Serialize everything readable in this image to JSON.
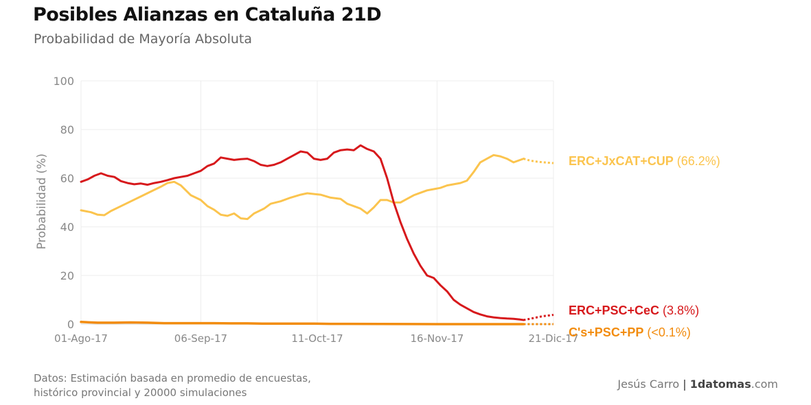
{
  "title": "Posibles Alianzas en Cataluña 21D",
  "subtitle": "Probabilidad de Mayoría Absoluta",
  "source": {
    "line1": "Datos: Estimación basada en promedio de encuestas,",
    "line2": "histórico provincial y 20000 simulaciones"
  },
  "credit": {
    "author": "Jesús Carro",
    "separator": "|",
    "brand": "1datomas",
    "tld": ".com"
  },
  "chart_data": {
    "type": "line",
    "title": "Posibles Alianzas en Cataluña 21D",
    "subtitle": "Probabilidad de Mayoría Absoluta",
    "xlabel": "",
    "ylabel": "Probabilidad (%)",
    "x_days_range": [
      0,
      142
    ],
    "ylim": [
      0,
      100
    ],
    "yticks": [
      0,
      20,
      40,
      60,
      80,
      100
    ],
    "xticks": [
      {
        "day": 0,
        "label": "01-Ago-17"
      },
      {
        "day": 36,
        "label": "06-Sep-17"
      },
      {
        "day": 71,
        "label": "11-Oct-17"
      },
      {
        "day": 107,
        "label": "16-Nov-17"
      },
      {
        "day": 142,
        "label": "21-Dic-17"
      }
    ],
    "grid": true,
    "projection_start_day": 133,
    "series": [
      {
        "name": "ERC+JxCAT+CUP",
        "label_value": "(66.2%)",
        "color": "#FBC44E",
        "points": [
          [
            0,
            46.8
          ],
          [
            3,
            46
          ],
          [
            5,
            45
          ],
          [
            7,
            44.8
          ],
          [
            9,
            46.5
          ],
          [
            12,
            48.5
          ],
          [
            15,
            50.5
          ],
          [
            18,
            52.5
          ],
          [
            21,
            54.5
          ],
          [
            24,
            56.5
          ],
          [
            26,
            58
          ],
          [
            28,
            58.5
          ],
          [
            30,
            57
          ],
          [
            33,
            53
          ],
          [
            36,
            51
          ],
          [
            38,
            48.5
          ],
          [
            40,
            47
          ],
          [
            42,
            45
          ],
          [
            44,
            44.5
          ],
          [
            46,
            45.5
          ],
          [
            48,
            43.5
          ],
          [
            50,
            43.2
          ],
          [
            52,
            45.5
          ],
          [
            55,
            47.5
          ],
          [
            57,
            49.5
          ],
          [
            60,
            50.5
          ],
          [
            63,
            52
          ],
          [
            66,
            53.2
          ],
          [
            68,
            53.8
          ],
          [
            70,
            53.5
          ],
          [
            72,
            53.2
          ],
          [
            75,
            52
          ],
          [
            78,
            51.5
          ],
          [
            80,
            49.5
          ],
          [
            82,
            48.5
          ],
          [
            84,
            47.5
          ],
          [
            86,
            45.5
          ],
          [
            88,
            48
          ],
          [
            90,
            51
          ],
          [
            92,
            51
          ],
          [
            94,
            50
          ],
          [
            96,
            50
          ],
          [
            98,
            51.5
          ],
          [
            100,
            53
          ],
          [
            102,
            54
          ],
          [
            104,
            55
          ],
          [
            106,
            55.5
          ],
          [
            108,
            56
          ],
          [
            110,
            57
          ],
          [
            112,
            57.5
          ],
          [
            114,
            58
          ],
          [
            116,
            59
          ],
          [
            118,
            62.5
          ],
          [
            120,
            66.5
          ],
          [
            122,
            68
          ],
          [
            124,
            69.5
          ],
          [
            126,
            69
          ],
          [
            128,
            68
          ],
          [
            130,
            66.5
          ],
          [
            131,
            67
          ],
          [
            133,
            68
          ],
          [
            135,
            67.2
          ],
          [
            137,
            66.8
          ],
          [
            139,
            66.5
          ],
          [
            142,
            66.2
          ]
        ]
      },
      {
        "name": "ERC+PSC+CeC",
        "label_value": "(3.8%)",
        "color": "#D7191C",
        "points": [
          [
            0,
            58.5
          ],
          [
            2,
            59.5
          ],
          [
            4,
            61
          ],
          [
            6,
            62
          ],
          [
            8,
            61
          ],
          [
            10,
            60.5
          ],
          [
            12,
            58.8
          ],
          [
            14,
            58
          ],
          [
            16,
            57.5
          ],
          [
            18,
            57.8
          ],
          [
            20,
            57.3
          ],
          [
            22,
            58
          ],
          [
            24,
            58.5
          ],
          [
            26,
            59.2
          ],
          [
            28,
            60
          ],
          [
            30,
            60.5
          ],
          [
            32,
            61
          ],
          [
            34,
            62
          ],
          [
            36,
            63
          ],
          [
            38,
            65
          ],
          [
            40,
            66
          ],
          [
            42,
            68.5
          ],
          [
            44,
            68
          ],
          [
            46,
            67.5
          ],
          [
            48,
            67.8
          ],
          [
            50,
            68
          ],
          [
            52,
            67
          ],
          [
            54,
            65.5
          ],
          [
            56,
            65
          ],
          [
            58,
            65.5
          ],
          [
            60,
            66.5
          ],
          [
            62,
            68
          ],
          [
            64,
            69.5
          ],
          [
            66,
            71
          ],
          [
            68,
            70.5
          ],
          [
            70,
            68
          ],
          [
            72,
            67.5
          ],
          [
            74,
            68
          ],
          [
            76,
            70.5
          ],
          [
            78,
            71.5
          ],
          [
            80,
            71.8
          ],
          [
            82,
            71.5
          ],
          [
            84,
            73.5
          ],
          [
            86,
            72
          ],
          [
            88,
            71
          ],
          [
            90,
            68
          ],
          [
            92,
            60
          ],
          [
            94,
            50
          ],
          [
            96,
            42
          ],
          [
            98,
            35
          ],
          [
            100,
            29
          ],
          [
            102,
            24
          ],
          [
            104,
            20
          ],
          [
            106,
            19
          ],
          [
            108,
            16
          ],
          [
            110,
            13.5
          ],
          [
            112,
            10
          ],
          [
            114,
            8
          ],
          [
            116,
            6.5
          ],
          [
            118,
            5
          ],
          [
            120,
            4
          ],
          [
            122,
            3.2
          ],
          [
            124,
            2.8
          ],
          [
            126,
            2.5
          ],
          [
            128,
            2.3
          ],
          [
            130,
            2.2
          ],
          [
            132,
            1.9
          ],
          [
            133,
            1.7
          ],
          [
            135,
            2.2
          ],
          [
            137,
            2.8
          ],
          [
            139,
            3.3
          ],
          [
            142,
            3.8
          ]
        ]
      },
      {
        "name": "C's+PSC+PP",
        "label_value": "(<0.1%)",
        "color": "#F28C0F",
        "points": [
          [
            0,
            0.9
          ],
          [
            5,
            0.6
          ],
          [
            10,
            0.6
          ],
          [
            15,
            0.7
          ],
          [
            20,
            0.6
          ],
          [
            25,
            0.4
          ],
          [
            30,
            0.4
          ],
          [
            35,
            0.4
          ],
          [
            40,
            0.4
          ],
          [
            45,
            0.3
          ],
          [
            50,
            0.3
          ],
          [
            55,
            0.2
          ],
          [
            60,
            0.2
          ],
          [
            65,
            0.2
          ],
          [
            70,
            0.2
          ],
          [
            75,
            0.1
          ],
          [
            80,
            0.1
          ],
          [
            90,
            0.05
          ],
          [
            100,
            0.02
          ],
          [
            110,
            0.01
          ],
          [
            120,
            0.01
          ],
          [
            133,
            0.01
          ],
          [
            142,
            0.01
          ]
        ]
      }
    ]
  }
}
